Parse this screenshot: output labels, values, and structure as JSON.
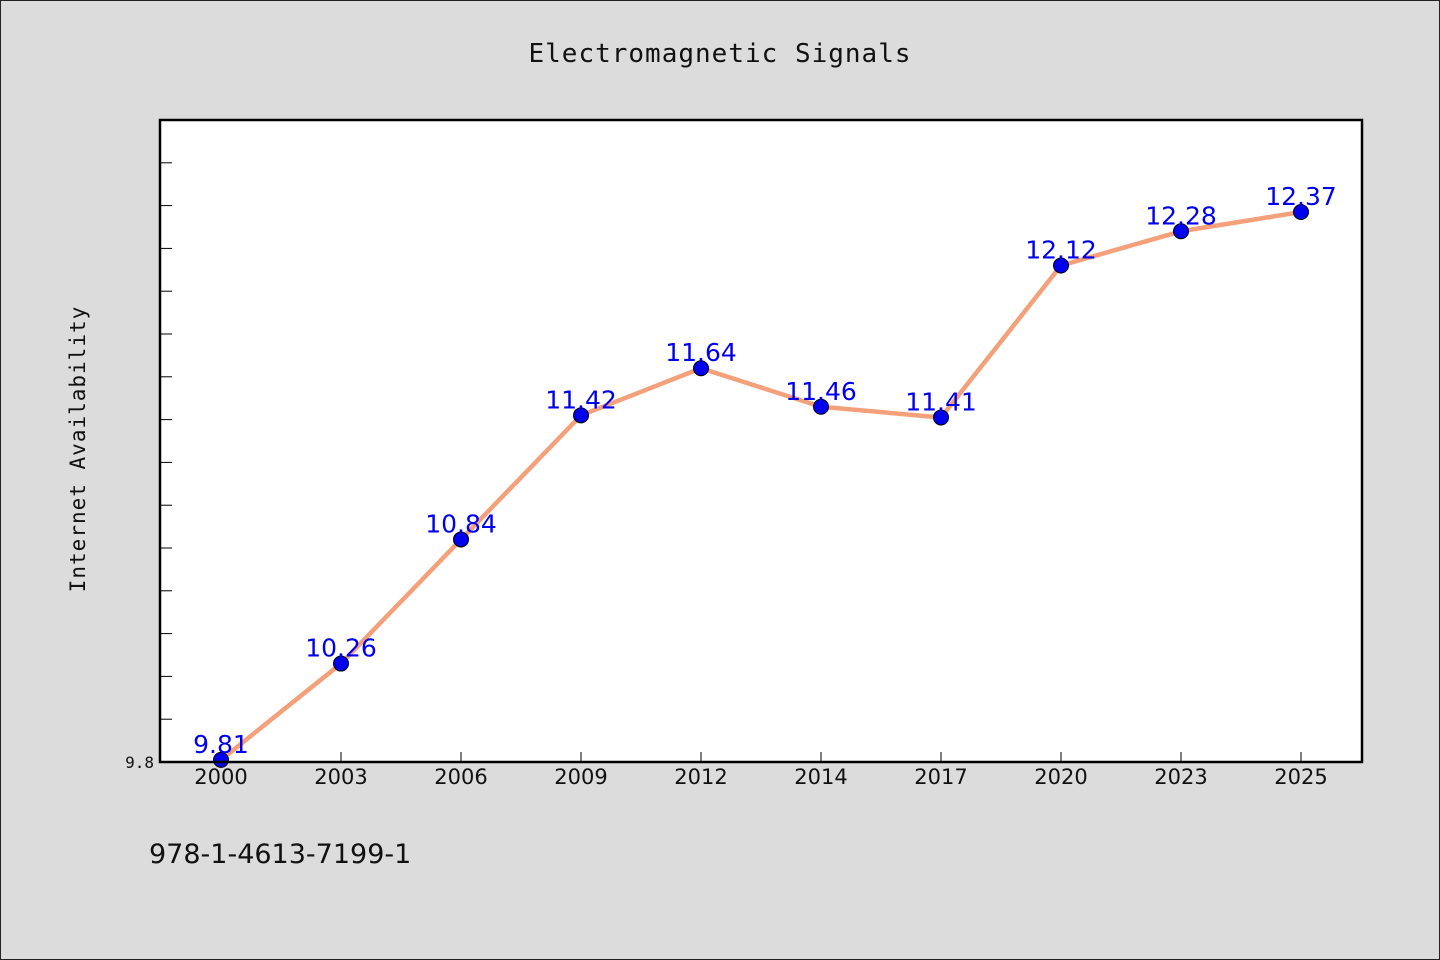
{
  "colors": {
    "figure_background": "#dcdcdc",
    "plot_background": "#ffffff",
    "axes_frame": "#000000",
    "line": "#f4a07a",
    "marker": "#0000ee",
    "data_label": "#0000ee"
  },
  "footer": {
    "isbn": "978-1-4613-7199-1"
  },
  "chart_data": {
    "type": "line",
    "title": "Electromagnetic Signals",
    "xlabel": "",
    "ylabel": "Internet Availability",
    "categories": [
      "2000",
      "2003",
      "2006",
      "2009",
      "2012",
      "2014",
      "2017",
      "2020",
      "2023",
      "2025"
    ],
    "series": [
      {
        "values": [
          9.81,
          10.26,
          10.84,
          11.42,
          11.64,
          11.46,
          11.41,
          12.12,
          12.28,
          12.37
        ]
      }
    ],
    "data_labels": [
      "9.81",
      "10.26",
      "10.84",
      "11.42",
      "11.64",
      "11.46",
      "11.41",
      "12.12",
      "12.28",
      "12.37"
    ],
    "ylim": [
      9.8,
      12.8
    ],
    "y_tick_labels": [
      {
        "value": 9.8,
        "label": "9.8"
      }
    ],
    "y_minor_tick_step": 0.2,
    "grid": false,
    "legend": "none",
    "marker": "circle"
  }
}
